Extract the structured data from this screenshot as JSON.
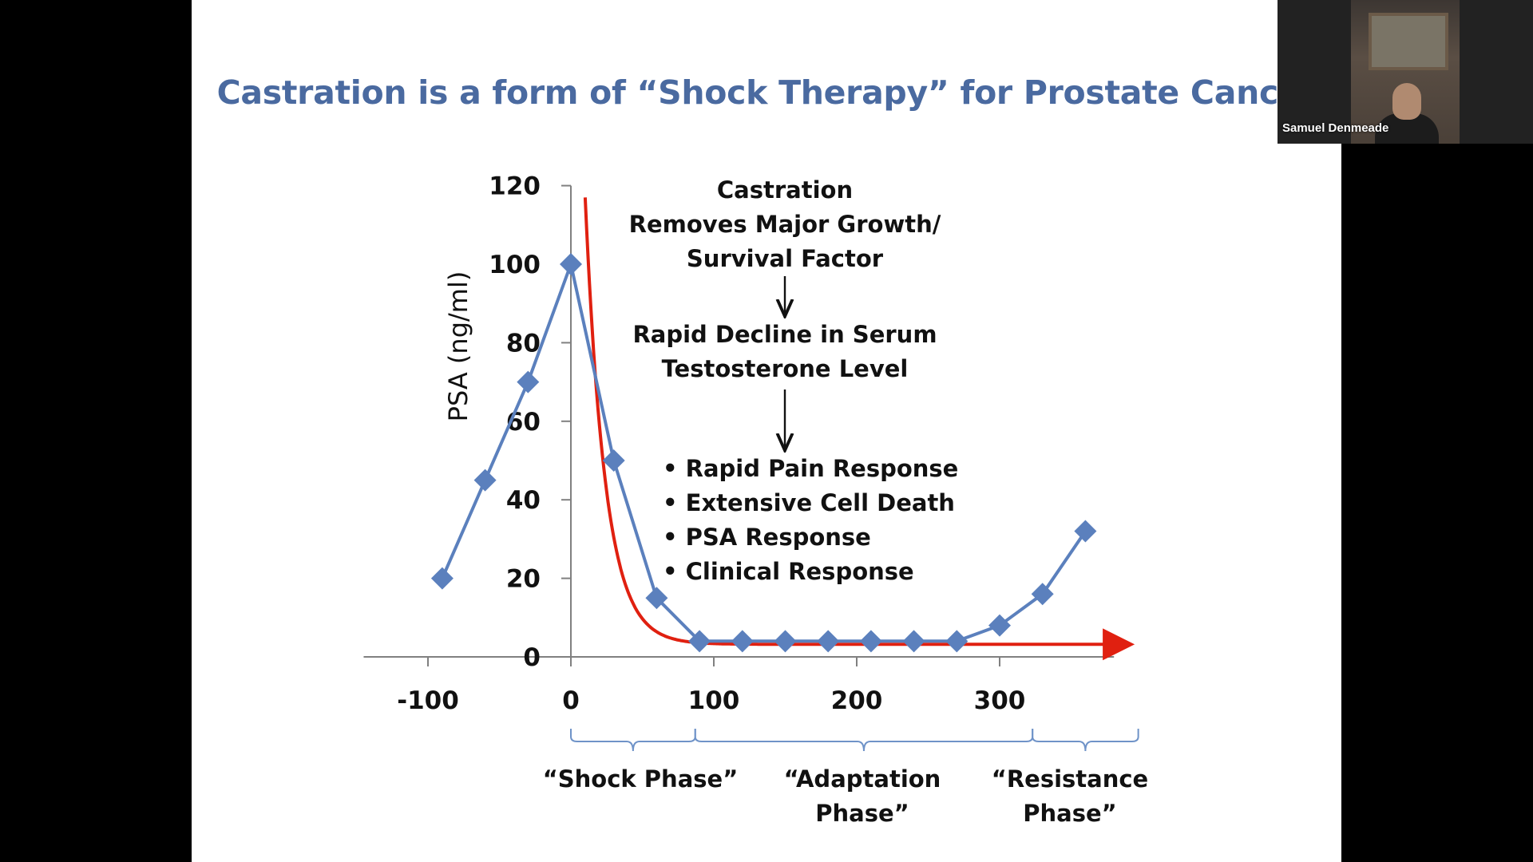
{
  "slide": {
    "title": "Castration is a form of “Shock Therapy” for Prostate Cancer",
    "annotation_top": [
      "Castration",
      "Removes Major Growth/",
      "Survival Factor"
    ],
    "annotation_mid": [
      "Rapid Decline in Serum",
      "Testosterone Level"
    ],
    "bullets": [
      "Rapid Pain Response",
      "Extensive Cell Death",
      "PSA Response",
      "Clinical Response"
    ],
    "phases": {
      "shock": "“Shock Phase”",
      "adaptation": "“Adaptation Phase”",
      "resistance_line1": "“Resistance",
      "resistance_line2": "Phase”"
    }
  },
  "chart_data": {
    "type": "line",
    "ylabel": "PSA (ng/ml)",
    "xlabel": "",
    "xlim": [
      -145,
      380
    ],
    "ylim": [
      0,
      120
    ],
    "x_ticks": [
      -100,
      0,
      100,
      200,
      300
    ],
    "y_ticks": [
      0,
      20,
      40,
      60,
      80,
      100,
      120
    ],
    "series": [
      {
        "color": "#5b80bd",
        "marker": "diamond",
        "x": [
          -90,
          -60,
          -30,
          0,
          30,
          60,
          90,
          120,
          150,
          180,
          210,
          240,
          270,
          300,
          330,
          360
        ],
        "y": [
          20,
          45,
          70,
          100,
          50,
          15,
          4,
          4,
          4,
          4,
          4,
          4,
          4,
          8,
          16,
          32
        ]
      }
    ],
    "testosterone_curve": {
      "color": "#e02010",
      "shape": "exponential-decay",
      "x_start": 10,
      "x_end": 390,
      "y_start": 117,
      "y_floor": 3.2
    },
    "grid": false
  },
  "participant": {
    "name": "Samuel Denmeade"
  }
}
